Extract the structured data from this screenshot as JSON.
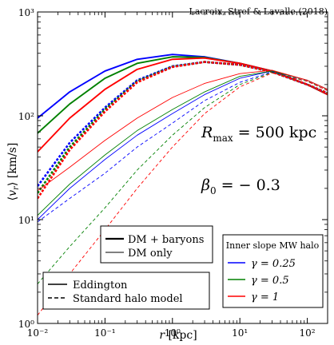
{
  "chart_data": {
    "type": "line",
    "credit": "Lacroix, Stref & Lavalle (2018)",
    "xlabel_var": "r",
    "xlabel_unit": "[kpc]",
    "ylabel_var": "⟨v_r⟩",
    "ylabel_unit": "[km/s]",
    "xscale": "log",
    "yscale": "log",
    "xlim": [
      0.01,
      200
    ],
    "ylim": [
      1,
      1000
    ],
    "x_tick_labels": [
      "10⁻²",
      "10⁻¹",
      "10⁰",
      "10¹",
      "10²"
    ],
    "y_tick_labels": [
      "10⁰",
      "10¹",
      "10²",
      "10³"
    ],
    "annotations": {
      "rmax": "R_max = 500 kpc",
      "beta": "β₀ = − 0.3"
    },
    "legend_components": {
      "entries": [
        {
          "label": "DM + baryons",
          "style": "thick"
        },
        {
          "label": "DM only",
          "style": "thin"
        }
      ],
      "placement": "lower-left"
    },
    "legend_method": {
      "entries": [
        {
          "label": "Eddington",
          "style": "solid"
        },
        {
          "label": "Standard halo model",
          "style": "dashed"
        }
      ],
      "placement": "lower-left"
    },
    "legend_slope": {
      "title": "Inner slope MW halo",
      "entries": [
        {
          "label": "γ = 0.25",
          "color": "#0000ff"
        },
        {
          "label": "γ = 0.5",
          "color": "#008000"
        },
        {
          "label": "γ = 1",
          "color": "#ff0000"
        }
      ],
      "placement": "lower-right"
    },
    "series": [
      {
        "gamma": "0.25",
        "color": "#0000ff",
        "components": "DM + baryons",
        "method": "Eddington",
        "x": [
          0.01,
          0.03,
          0.1,
          0.3,
          1,
          3,
          10,
          30,
          100,
          200
        ],
        "y": [
          95,
          170,
          270,
          350,
          390,
          370,
          320,
          270,
          200,
          160
        ]
      },
      {
        "gamma": "0.5",
        "color": "#008000",
        "components": "DM + baryons",
        "method": "Eddington",
        "x": [
          0.01,
          0.03,
          0.1,
          0.3,
          1,
          3,
          10,
          30,
          100,
          200
        ],
        "y": [
          68,
          130,
          230,
          320,
          370,
          365,
          320,
          270,
          200,
          160
        ]
      },
      {
        "gamma": "1",
        "color": "#ff0000",
        "components": "DM + baryons",
        "method": "Eddington",
        "x": [
          0.01,
          0.03,
          0.1,
          0.3,
          1,
          3,
          10,
          30,
          100,
          200
        ],
        "y": [
          45,
          95,
          180,
          280,
          350,
          360,
          320,
          270,
          200,
          160
        ]
      },
      {
        "gamma": "0.25",
        "color": "#0000ff",
        "components": "DM + baryons",
        "method": "Standard halo model",
        "x": [
          0.01,
          0.03,
          0.1,
          0.3,
          1,
          3,
          10,
          30,
          100,
          200
        ],
        "y": [
          21,
          55,
          120,
          220,
          300,
          330,
          310,
          265,
          200,
          165
        ]
      },
      {
        "gamma": "0.5",
        "color": "#008000",
        "components": "DM + baryons",
        "method": "Standard halo model",
        "x": [
          0.01,
          0.03,
          0.1,
          0.3,
          1,
          3,
          10,
          30,
          100,
          200
        ],
        "y": [
          18,
          50,
          115,
          215,
          298,
          330,
          310,
          265,
          200,
          165
        ]
      },
      {
        "gamma": "1",
        "color": "#ff0000",
        "components": "DM + baryons",
        "method": "Standard halo model",
        "x": [
          0.01,
          0.03,
          0.1,
          0.3,
          1,
          3,
          10,
          30,
          100,
          200
        ],
        "y": [
          16,
          47,
          110,
          210,
          295,
          330,
          310,
          265,
          200,
          165
        ]
      },
      {
        "gamma": "0.25",
        "color": "#0000ff",
        "components": "DM only",
        "method": "Eddington",
        "x": [
          0.01,
          0.03,
          0.1,
          0.3,
          1,
          3,
          10,
          30,
          100,
          200
        ],
        "y": [
          10,
          20,
          38,
          65,
          105,
          160,
          230,
          270,
          220,
          180
        ]
      },
      {
        "gamma": "0.5",
        "color": "#008000",
        "components": "DM only",
        "method": "Eddington",
        "x": [
          0.01,
          0.03,
          0.1,
          0.3,
          1,
          3,
          10,
          30,
          100,
          200
        ],
        "y": [
          11,
          22,
          42,
          72,
          115,
          170,
          240,
          270,
          220,
          180
        ]
      },
      {
        "gamma": "1",
        "color": "#ff0000",
        "components": "DM only",
        "method": "Eddington",
        "x": [
          0.01,
          0.03,
          0.1,
          0.3,
          1,
          3,
          10,
          30,
          100,
          200
        ],
        "y": [
          19,
          32,
          58,
          95,
          150,
          205,
          255,
          275,
          220,
          180
        ]
      },
      {
        "gamma": "0.25",
        "color": "#0000ff",
        "components": "DM only",
        "method": "Standard halo model",
        "x": [
          0.01,
          0.03,
          0.1,
          0.3,
          1,
          3,
          10,
          30,
          100,
          200
        ],
        "y": [
          9.5,
          16,
          28,
          50,
          85,
          140,
          210,
          265,
          215,
          175
        ]
      },
      {
        "gamma": "0.5",
        "color": "#008000",
        "components": "DM only",
        "method": "Standard halo model",
        "x": [
          0.01,
          0.03,
          0.1,
          0.3,
          1,
          3,
          10,
          30,
          100,
          200
        ],
        "y": [
          2.4,
          5.5,
          13,
          30,
          65,
          120,
          200,
          262,
          215,
          175
        ]
      },
      {
        "gamma": "1",
        "color": "#ff0000",
        "components": "DM only",
        "method": "Standard halo model",
        "x": [
          0.01,
          0.03,
          0.1,
          0.3,
          1,
          3,
          10,
          30,
          100,
          200
        ],
        "y": [
          1.2,
          3,
          8,
          20,
          50,
          105,
          190,
          258,
          215,
          175
        ]
      }
    ]
  }
}
